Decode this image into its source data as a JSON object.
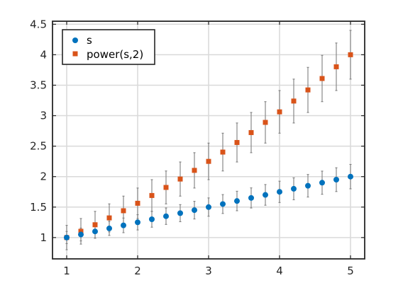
{
  "chart_data": {
    "type": "scatter",
    "x": [
      1.0,
      1.2,
      1.4,
      1.6,
      1.8,
      2.0,
      2.2,
      2.4,
      2.6,
      2.8,
      3.0,
      3.2,
      3.4,
      3.6,
      3.8,
      4.0,
      4.2,
      4.4,
      4.6,
      4.8,
      5.0
    ],
    "series": [
      {
        "name": "s",
        "marker": "circle",
        "color": "#0072BD",
        "values": [
          1.0,
          1.05,
          1.1,
          1.15,
          1.2,
          1.25,
          1.3,
          1.35,
          1.4,
          1.45,
          1.5,
          1.55,
          1.6,
          1.65,
          1.7,
          1.75,
          1.8,
          1.85,
          1.9,
          1.95,
          2.0
        ],
        "error": [
          0.1,
          0.105,
          0.11,
          0.115,
          0.12,
          0.125,
          0.13,
          0.135,
          0.14,
          0.145,
          0.15,
          0.155,
          0.16,
          0.165,
          0.17,
          0.175,
          0.18,
          0.185,
          0.19,
          0.195,
          0.2
        ]
      },
      {
        "name": "power(s,2)",
        "marker": "square",
        "color": "#D95319",
        "values": [
          1.0,
          1.1025,
          1.21,
          1.3225,
          1.44,
          1.5625,
          1.69,
          1.8225,
          1.96,
          2.1025,
          2.25,
          2.4025,
          2.56,
          2.7225,
          2.89,
          3.0625,
          3.24,
          3.4225,
          3.61,
          3.8025,
          4.0
        ],
        "error": [
          0.2,
          0.21,
          0.22,
          0.23,
          0.24,
          0.25,
          0.26,
          0.27,
          0.28,
          0.29,
          0.3,
          0.31,
          0.32,
          0.33,
          0.34,
          0.35,
          0.36,
          0.37,
          0.38,
          0.39,
          0.4
        ]
      }
    ],
    "error_bar_color": "#7f7f7f",
    "xlim": [
      0.8,
      5.2
    ],
    "ylim": [
      0.65,
      4.55
    ],
    "xticks": [
      1,
      2,
      3,
      4,
      5
    ],
    "xtick_labels": [
      "1",
      "2",
      "3",
      "4",
      "5"
    ],
    "yticks": [
      1,
      1.5,
      2,
      2.5,
      3,
      3.5,
      4,
      4.5
    ],
    "ytick_labels": [
      "1",
      "1.5",
      "2",
      "2.5",
      "3",
      "3.5",
      "4",
      "4.5"
    ],
    "grid": true,
    "legend": "top-left",
    "title": "",
    "xlabel": "",
    "ylabel": ""
  }
}
